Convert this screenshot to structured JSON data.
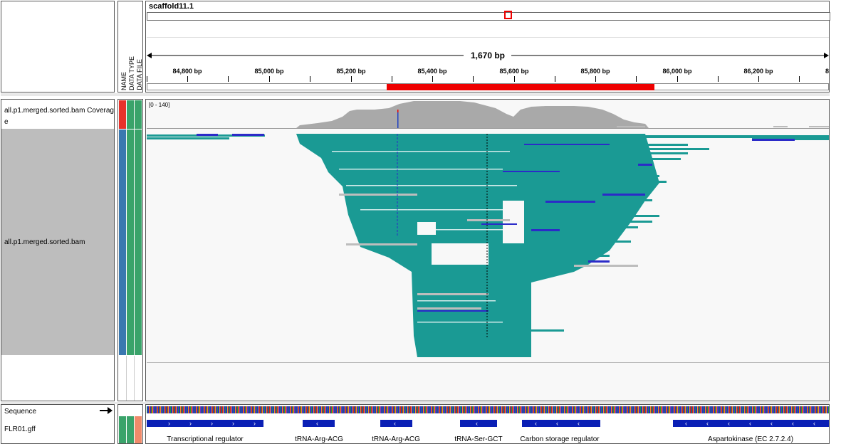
{
  "header": {
    "chromosome": "scaffold11.1",
    "span_label": "1,670 bp",
    "ticks": [
      "84,800 bp",
      "85,000 bp",
      "85,200 bp",
      "85,400 bp",
      "85,600 bp",
      "85,800 bp",
      "86,000 bp",
      "86,200 bp",
      "8"
    ]
  },
  "attribute_headers": {
    "name": "NAME",
    "data_type": "DATA TYPE",
    "data_file": "DATA FILE"
  },
  "tracks": {
    "coverage": {
      "name": "all.p1.merged.sorted.bam Coverage",
      "range": "[0 - 140]"
    },
    "alignment": {
      "name": "all.p1.merged.sorted.bam"
    },
    "sequence": {
      "name": "Sequence"
    },
    "gff": {
      "name": "FLR01.gff"
    }
  },
  "features": [
    {
      "label": "Transcriptional regulator",
      "strand": "+"
    },
    {
      "label": "tRNA-Arg-ACG",
      "strand": "-"
    },
    {
      "label": "tRNA-Arg-ACG",
      "strand": "-"
    },
    {
      "label": "tRNA-Ser-GCT",
      "strand": "-"
    },
    {
      "label": "Carbon storage regulator",
      "strand": "-"
    },
    {
      "label": "Aspartokinase (EC 2.7.2.4)",
      "strand": "-"
    }
  ],
  "colors": {
    "read": "#1a9a94",
    "read_neg": "#2b2bc8",
    "coverage": "#a9a9a9",
    "selection": "#ee0000",
    "feature": "#0a1fb5",
    "attr_name_red": "#e8322b",
    "attr_blue": "#3a78b0",
    "attr_green": "#3aa36a"
  }
}
